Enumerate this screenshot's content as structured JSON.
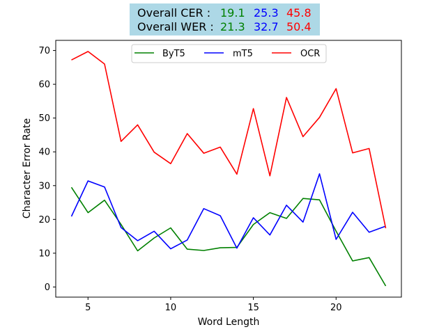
{
  "chart_data": {
    "type": "line",
    "xlabel": "Word Length",
    "ylabel": "Character Error Rate",
    "xlim": [
      3.05,
      23.95
    ],
    "ylim": [
      -3.0,
      73.0
    ],
    "xticks": [
      5,
      10,
      15,
      20
    ],
    "yticks": [
      0,
      10,
      20,
      30,
      40,
      50,
      60,
      70
    ],
    "grid": false,
    "legend_position": "top-center",
    "x": [
      4,
      5,
      6,
      7,
      8,
      9,
      10,
      11,
      12,
      13,
      14,
      15,
      16,
      17,
      18,
      19,
      20,
      21,
      22,
      23
    ],
    "series": [
      {
        "name": "ByT5",
        "color": "#008000",
        "values": [
          29.5,
          22.0,
          25.7,
          18.5,
          10.7,
          14.5,
          17.5,
          11.2,
          10.8,
          11.6,
          11.7,
          18.5,
          22.0,
          20.3,
          26.2,
          25.8,
          16.5,
          7.7,
          8.7,
          0.3
        ]
      },
      {
        "name": "mT5",
        "color": "#0000ff",
        "values": [
          20.9,
          31.4,
          29.6,
          17.6,
          13.7,
          16.5,
          11.3,
          13.9,
          23.2,
          21.1,
          11.5,
          20.5,
          15.4,
          24.2,
          19.2,
          33.5,
          14.1,
          22.1,
          16.2,
          18.0
        ]
      },
      {
        "name": "OCR",
        "color": "#ff0000",
        "values": [
          67.2,
          69.7,
          66.0,
          43.1,
          48.0,
          39.9,
          36.5,
          45.4,
          39.6,
          41.4,
          33.4,
          52.8,
          32.9,
          56.1,
          44.5,
          50.2,
          58.7,
          39.7,
          41.0,
          17.4
        ]
      }
    ]
  },
  "summary": {
    "cer_label": "Overall CER :",
    "wer_label": "Overall WER :",
    "cer_values": [
      "19.1",
      "25.3",
      "45.8"
    ],
    "wer_values": [
      "21.3",
      "32.7",
      "50.4"
    ],
    "value_colors": [
      "#008000",
      "#0000ff",
      "#ff0000"
    ],
    "background": "#add8e6"
  }
}
